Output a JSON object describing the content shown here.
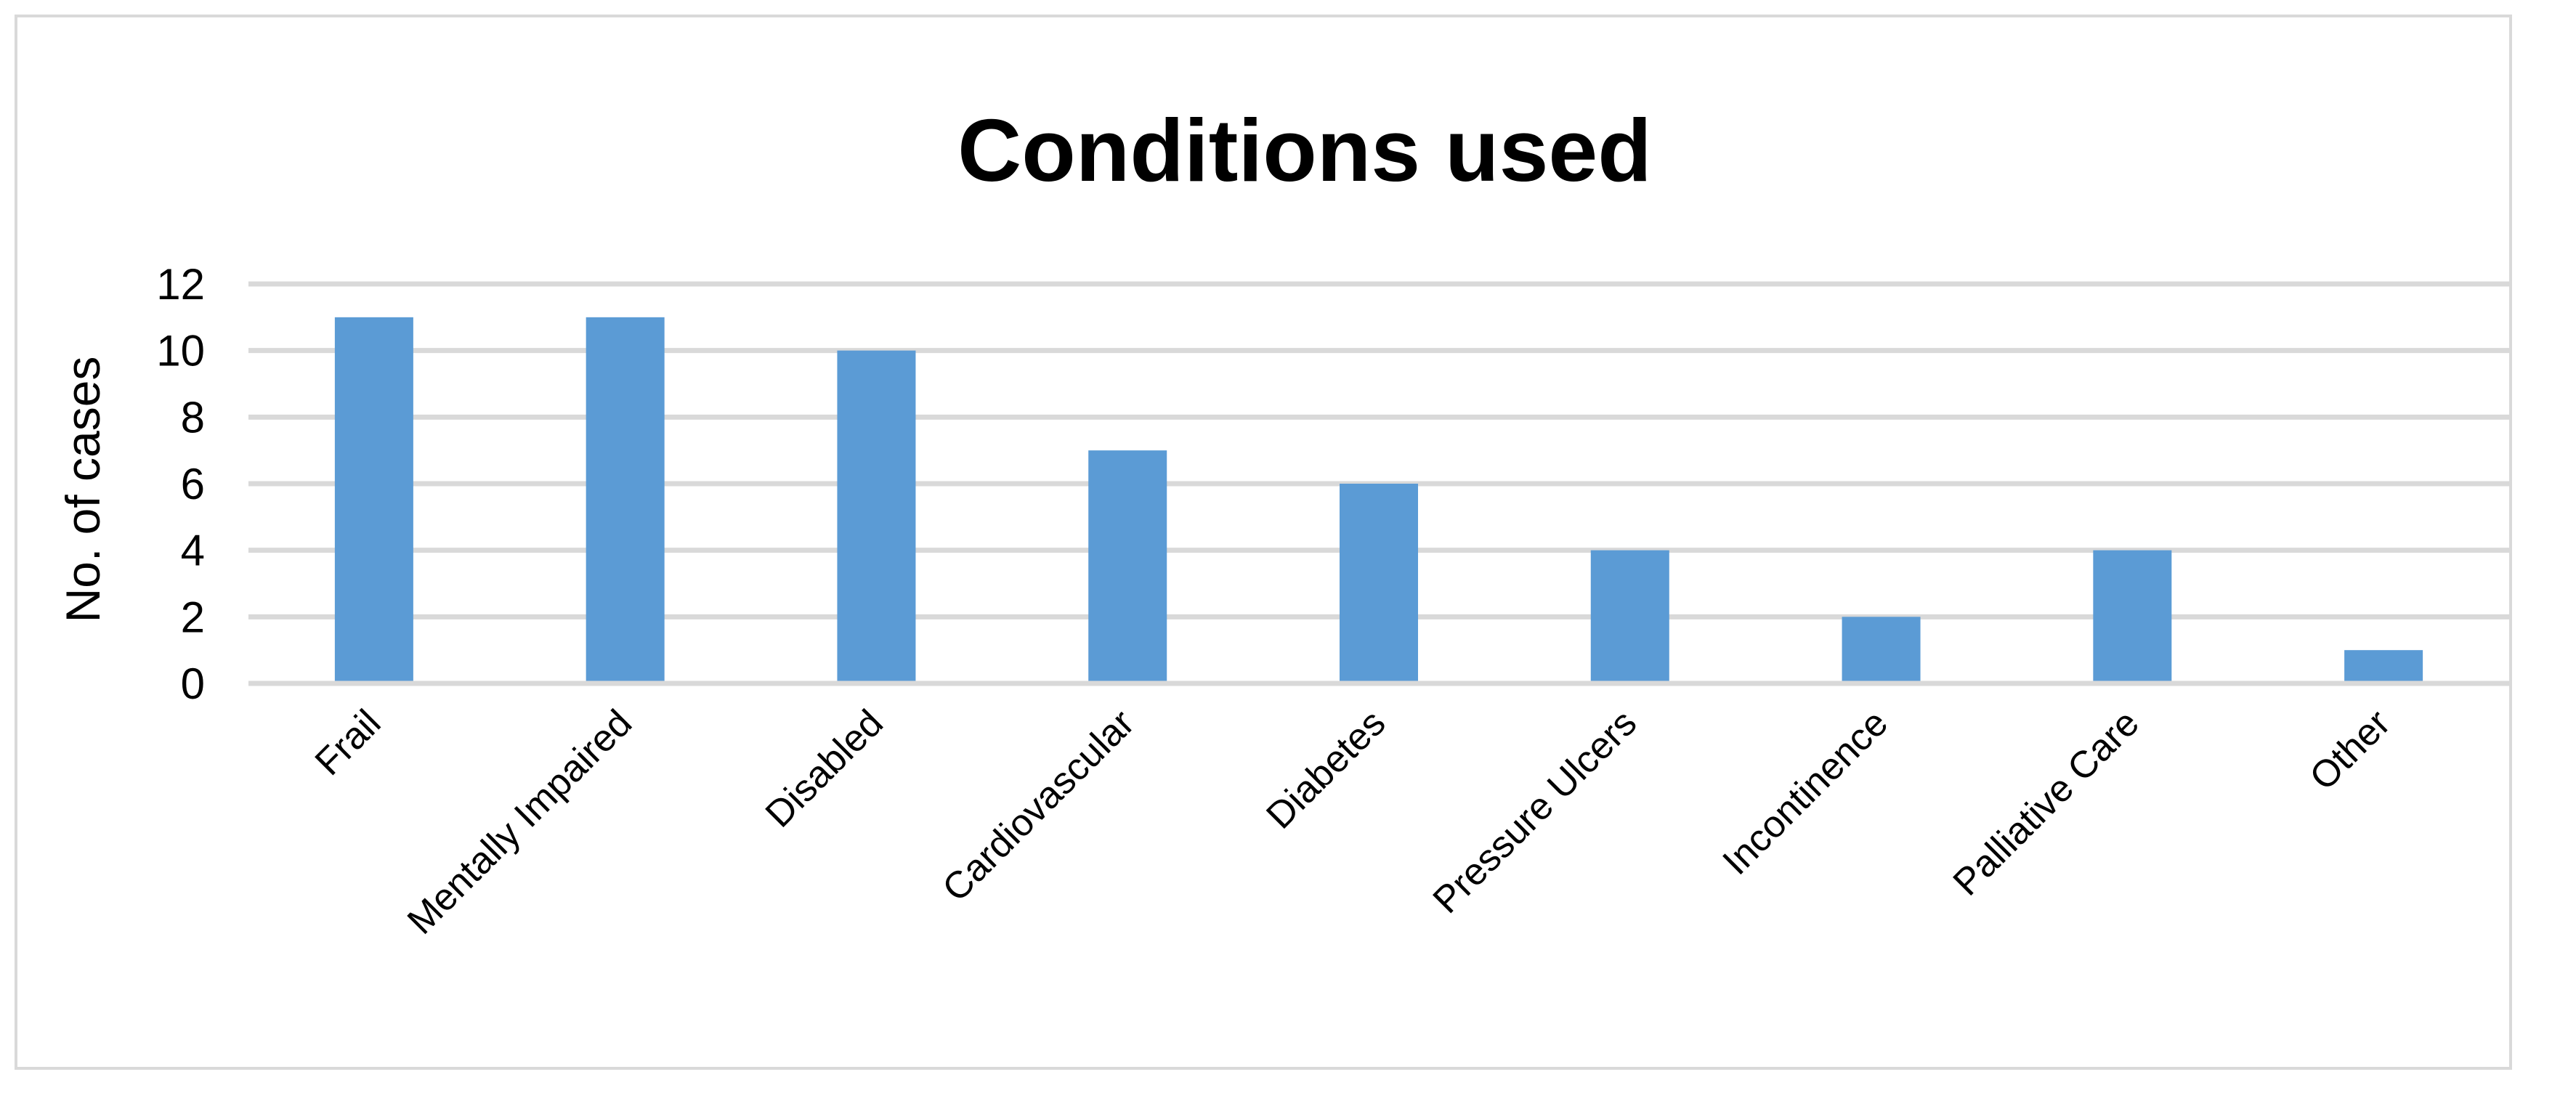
{
  "chart_data": {
    "type": "bar",
    "title": "Conditions used",
    "xlabel": "",
    "ylabel": "No. of cases",
    "categories": [
      "Frail",
      "Mentally Impaired",
      "Disabled",
      "Cardiovascular",
      "Diabetes",
      "Pressure Ulcers",
      "Incontinence",
      "Palliative Care",
      "Other"
    ],
    "values": [
      11,
      11,
      10,
      7,
      6,
      4,
      2,
      4,
      1
    ],
    "ylim": [
      0,
      12
    ],
    "yticks": [
      0,
      2,
      4,
      6,
      8,
      10,
      12
    ],
    "grid": true,
    "legend": "none",
    "bar_color": "#5b9bd5",
    "grid_color": "#d9d9d9"
  }
}
